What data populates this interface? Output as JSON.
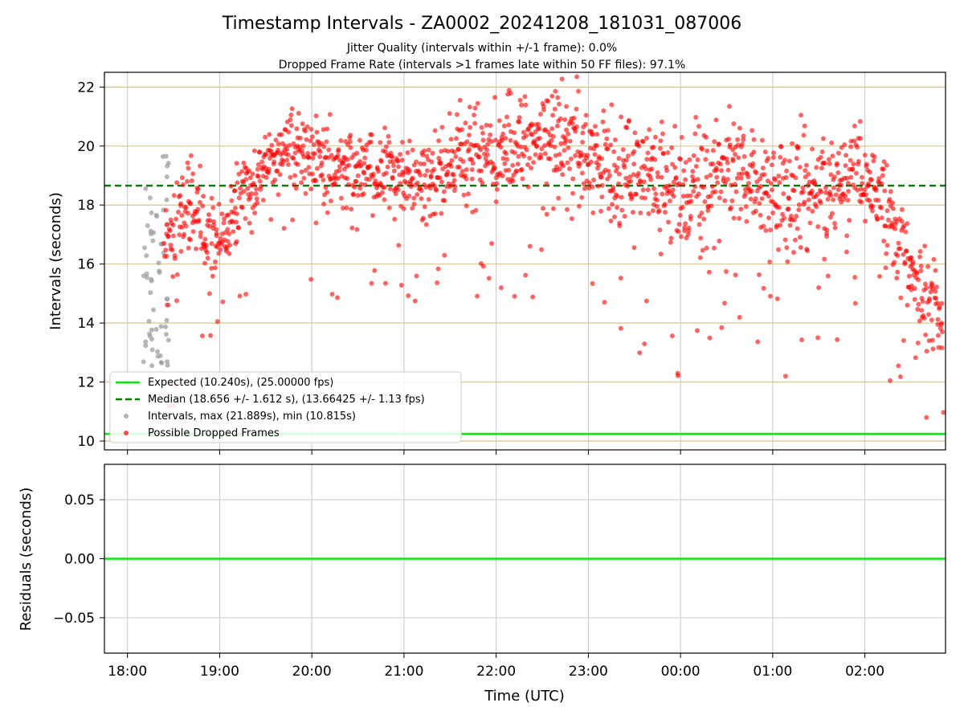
{
  "chart_data": {
    "type": "scatter",
    "title": "Timestamp Intervals - ZA0002_20241208_181031_087006",
    "subtitles": [
      "Jitter Quality (intervals within +/-1 frame): 0.0%",
      "Dropped Frame Rate (intervals >1 frames late within 50 FF files): 97.1%"
    ],
    "xlabel": "Time (UTC)",
    "x_ticks": [
      "18:00",
      "19:00",
      "20:00",
      "21:00",
      "22:00",
      "23:00",
      "00:00",
      "01:00",
      "02:00"
    ],
    "x_range_hours": [
      -0.25,
      8.875
    ],
    "top_panel": {
      "ylabel": "Intervals (seconds)",
      "ylim": [
        9.7,
        22.5
      ],
      "y_ticks": [
        "10",
        "12",
        "14",
        "16",
        "18",
        "20",
        "22"
      ],
      "grid": "both",
      "expected": 10.24,
      "median": 18.656,
      "legend_position": "lower-left",
      "legend": [
        "Expected (10.240s), (25.00000 fps)",
        "Median (18.656 +/- 1.612 s), (13.66425 +/- 1.13 fps)",
        "Intervals, max (21.889s), min (10.815s)",
        "Possible Dropped Frames"
      ]
    },
    "bottom_panel": {
      "ylabel": "Residuals (seconds)",
      "ylim": [
        -0.08,
        0.08
      ],
      "y_ticks": [
        "0.05",
        "0.00",
        "−0.05"
      ],
      "residual_line": 0.0,
      "grid": "both"
    },
    "series": [
      {
        "name": "Intervals, max (21.889s), min (10.815s)",
        "color": "#a0a0a0",
        "segment": {
          "x_start": 0.17,
          "x_end": 0.45,
          "n": 60,
          "y_min": 12.3,
          "y_max": 19.8
        }
      },
      {
        "name": "Possible Dropped Frames",
        "color": "#ff0000",
        "trend": [
          [
            0.4,
            16.6
          ],
          [
            0.55,
            17.5
          ],
          [
            0.7,
            18.2
          ],
          [
            0.8,
            17.2
          ],
          [
            0.95,
            16.8
          ],
          [
            1.1,
            17.2
          ],
          [
            1.25,
            18.4
          ],
          [
            1.45,
            19.2
          ],
          [
            1.7,
            20.0
          ],
          [
            1.95,
            19.8
          ],
          [
            2.2,
            19.3
          ],
          [
            2.5,
            19.0
          ],
          [
            2.8,
            19.3
          ],
          [
            3.0,
            18.8
          ],
          [
            3.3,
            18.6
          ],
          [
            3.6,
            19.8
          ],
          [
            3.9,
            19.7
          ],
          [
            4.2,
            20.0
          ],
          [
            4.5,
            20.3
          ],
          [
            4.8,
            20.0
          ],
          [
            5.1,
            19.7
          ],
          [
            5.4,
            19.3
          ],
          [
            5.7,
            18.9
          ],
          [
            6.0,
            18.7
          ],
          [
            6.3,
            18.8
          ],
          [
            6.6,
            19.0
          ],
          [
            6.9,
            18.6
          ],
          [
            7.2,
            18.4
          ],
          [
            7.5,
            18.6
          ],
          [
            7.8,
            18.7
          ],
          [
            8.05,
            19.0
          ],
          [
            8.2,
            18.0
          ],
          [
            8.4,
            16.5
          ],
          [
            8.6,
            15.0
          ],
          [
            8.85,
            14.3
          ]
        ],
        "spread": [
          [
            0.4,
            2.2
          ],
          [
            1.2,
            1.2
          ],
          [
            2.0,
            1.5
          ],
          [
            3.0,
            1.4
          ],
          [
            4.0,
            1.8
          ],
          [
            5.0,
            2.0
          ],
          [
            6.0,
            2.2
          ],
          [
            7.0,
            2.2
          ],
          [
            8.0,
            1.8
          ],
          [
            8.5,
            1.8
          ],
          [
            8.85,
            1.3
          ]
        ]
      }
    ]
  }
}
